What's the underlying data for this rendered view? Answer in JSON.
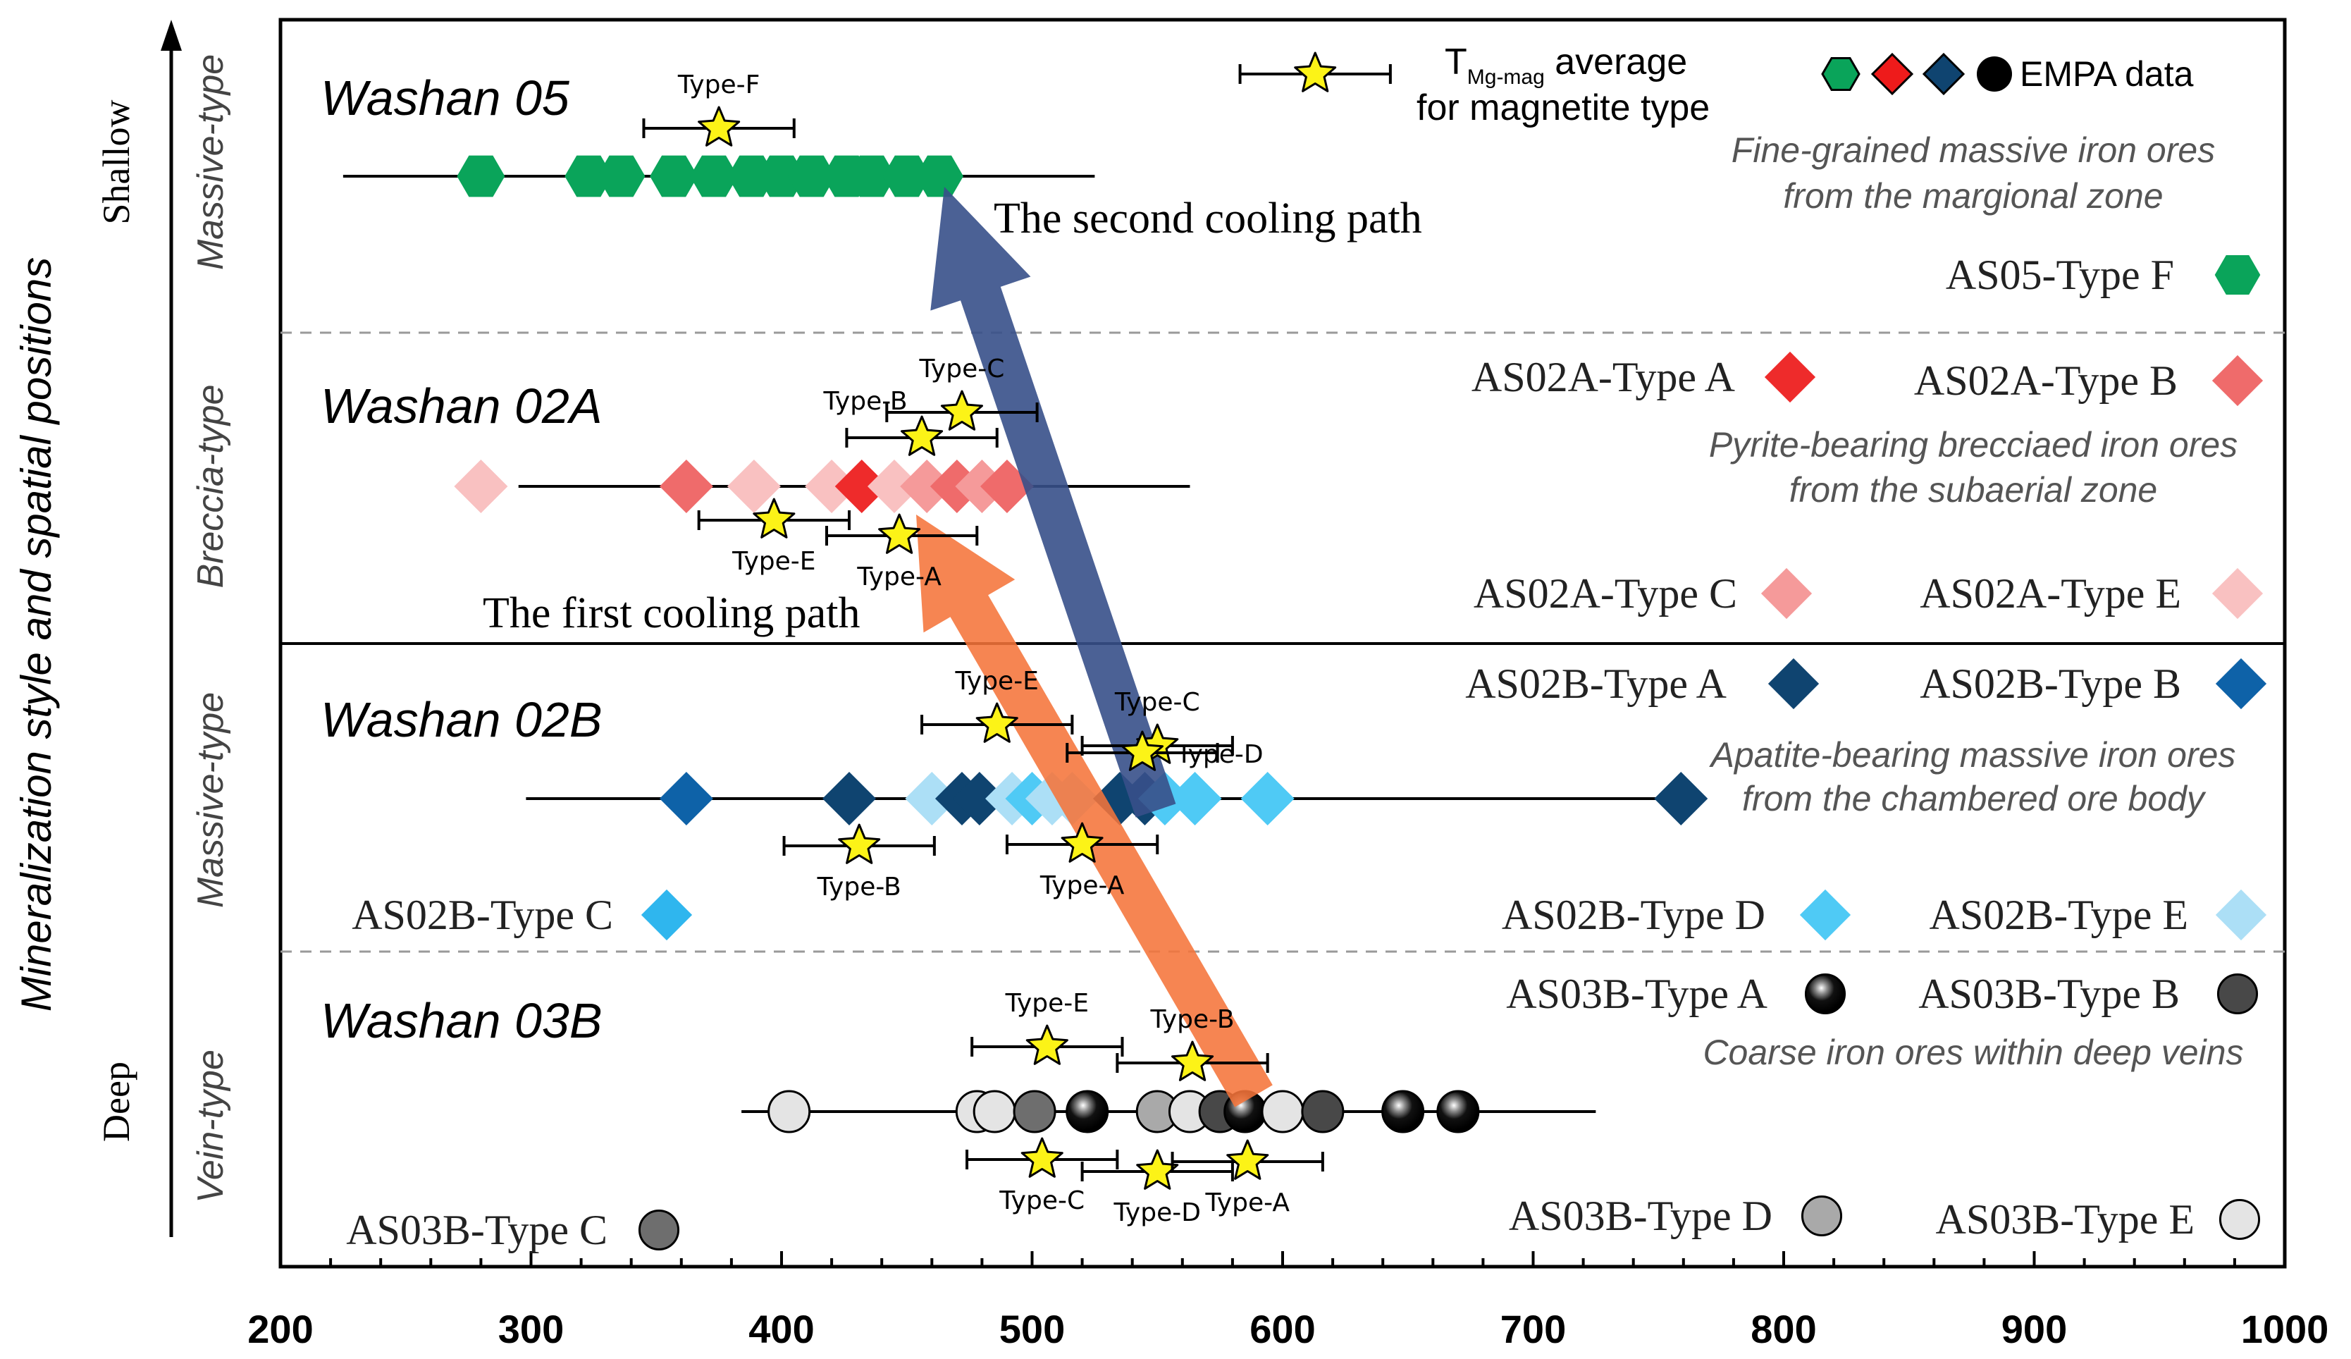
{
  "chart_data": {
    "type": "scatter",
    "title": "",
    "xlabel": "",
    "ylabel": "Mineralization style and spatial positions",
    "xlim": [
      200,
      1000
    ],
    "x_ticks": [
      "200",
      "300",
      "400",
      "500",
      "600",
      "700",
      "800",
      "900",
      "1000"
    ],
    "y_axis_top": "Shallow",
    "y_axis_bottom": "Deep",
    "legend": {
      "tmag_label_main": "T",
      "tmag_label_sub": "Mg-mag",
      "tmag_label_rest": " average",
      "tmag_label_line2": "for magnetite type",
      "empa_label": "EMPA data"
    },
    "colors": {
      "AS05-F": "#0aa45a",
      "AS02A-A": "#ee2b2b",
      "AS02A-B": "#ef6b6b",
      "AS02A-C": "#f59a9a",
      "AS02A-E": "#f9c1c1",
      "AS02B-A": "#0f4470",
      "AS02B-B": "#0e62a8",
      "AS02B-C": "#2fb6ee",
      "AS02B-D": "#4fcaf5",
      "AS02B-E": "#acdff6",
      "AS03B-A": "#000000",
      "AS03B-B": "#484848",
      "AS03B-C": "#6e6e6e",
      "AS03B-D": "#a9a9a9",
      "AS03B-E": "#e4e4e4",
      "star": "#fcf317",
      "path1": "#f5743a",
      "path2": "#37508a"
    },
    "paths": [
      {
        "name": "The first cooling path",
        "from": [
          580,
          "03B"
        ],
        "to": [
          445,
          "02A"
        ]
      },
      {
        "name": "The second cooling path",
        "from": [
          545,
          "02B"
        ],
        "to": [
          460,
          "05"
        ]
      }
    ],
    "groups": [
      {
        "id": "05",
        "name": "Washan 05",
        "style": "Massive-type",
        "description": [
          "Fine-grained massive iron ores",
          "from the margional zone"
        ],
        "range": [
          225,
          525
        ],
        "legend_items": [
          {
            "label": "AS05-Type F",
            "color_key": "AS05-F",
            "marker": "hexagon"
          }
        ],
        "points": [
          {
            "x": 280,
            "type": "AS05-F"
          },
          {
            "x": 323,
            "type": "AS05-F"
          },
          {
            "x": 336,
            "type": "AS05-F"
          },
          {
            "x": 357,
            "type": "AS05-F"
          },
          {
            "x": 373,
            "type": "AS05-F"
          },
          {
            "x": 388,
            "type": "AS05-F"
          },
          {
            "x": 400,
            "type": "AS05-F"
          },
          {
            "x": 412,
            "type": "AS05-F"
          },
          {
            "x": 426,
            "type": "AS05-F"
          },
          {
            "x": 436,
            "type": "AS05-F"
          },
          {
            "x": 450,
            "type": "AS05-F"
          },
          {
            "x": 463,
            "type": "AS05-F"
          }
        ],
        "averages": [
          {
            "label": "Type-F",
            "x": 375,
            "err": [
              345,
              405
            ],
            "pos": "above",
            "row": 0
          }
        ]
      },
      {
        "id": "02A",
        "name": "Washan 02A",
        "style": "Breccia-type",
        "description": [
          "Pyrite-bearing brecciaed iron ores",
          "from the subaerial zone"
        ],
        "range": [
          295,
          563
        ],
        "legend_items": [
          {
            "label": "AS02A-Type A",
            "color_key": "AS02A-A",
            "marker": "diamond"
          },
          {
            "label": "AS02A-Type B",
            "color_key": "AS02A-B",
            "marker": "diamond"
          },
          {
            "label": "AS02A-Type C",
            "color_key": "AS02A-C",
            "marker": "diamond"
          },
          {
            "label": "AS02A-Type E",
            "color_key": "AS02A-E",
            "marker": "diamond"
          }
        ],
        "points": [
          {
            "x": 280,
            "type": "AS02A-E"
          },
          {
            "x": 362,
            "type": "AS02A-B"
          },
          {
            "x": 389,
            "type": "AS02A-E"
          },
          {
            "x": 420,
            "type": "AS02A-E"
          },
          {
            "x": 432,
            "type": "AS02A-A"
          },
          {
            "x": 445,
            "type": "AS02A-E"
          },
          {
            "x": 458,
            "type": "AS02A-C"
          },
          {
            "x": 470,
            "type": "AS02A-B"
          },
          {
            "x": 480,
            "type": "AS02A-C"
          },
          {
            "x": 490,
            "type": "AS02A-B"
          }
        ],
        "averages": [
          {
            "label": "Type-C",
            "x": 472,
            "err": [
              442,
              502
            ],
            "pos": "above",
            "row": 0
          },
          {
            "label": "Type-B",
            "x": 456,
            "err": [
              426,
              486
            ],
            "pos": "left",
            "row": 1
          },
          {
            "label": "Type-E",
            "x": 397,
            "err": [
              367,
              427
            ],
            "pos": "below",
            "row": 2
          },
          {
            "label": "Type-A",
            "x": 447,
            "err": [
              418,
              478
            ],
            "pos": "below",
            "row": 3
          }
        ]
      },
      {
        "id": "02B",
        "name": "Washan 02B",
        "style": "Massive-type",
        "description": [
          "Apatite-bearing massive iron ores",
          "from the chambered ore body"
        ],
        "range": [
          298,
          760
        ],
        "legend_items": [
          {
            "label": "AS02B-Type A",
            "color_key": "AS02B-A",
            "marker": "diamond"
          },
          {
            "label": "AS02B-Type B",
            "color_key": "AS02B-B",
            "marker": "diamond"
          },
          {
            "label": "AS02B-Type C",
            "color_key": "AS02B-C",
            "marker": "diamond"
          },
          {
            "label": "AS02B-Type D",
            "color_key": "AS02B-D",
            "marker": "diamond"
          },
          {
            "label": "AS02B-Type E",
            "color_key": "AS02B-E",
            "marker": "diamond"
          }
        ],
        "points": [
          {
            "x": 362,
            "type": "AS02B-B"
          },
          {
            "x": 427,
            "type": "AS02B-A"
          },
          {
            "x": 460,
            "type": "AS02B-E"
          },
          {
            "x": 472,
            "type": "AS02B-A"
          },
          {
            "x": 479,
            "type": "AS02B-A"
          },
          {
            "x": 492,
            "type": "AS02B-E"
          },
          {
            "x": 500,
            "type": "AS02B-D"
          },
          {
            "x": 508,
            "type": "AS02B-E"
          },
          {
            "x": 516,
            "type": "AS02B-E"
          },
          {
            "x": 535,
            "type": "AS02B-A"
          },
          {
            "x": 545,
            "type": "AS02B-A"
          },
          {
            "x": 553,
            "type": "AS02B-D"
          },
          {
            "x": 565,
            "type": "AS02B-D"
          },
          {
            "x": 594,
            "type": "AS02B-D"
          },
          {
            "x": 759,
            "type": "AS02B-A"
          }
        ],
        "averages": [
          {
            "label": "Type-E",
            "x": 486,
            "err": [
              456,
              516
            ],
            "pos": "above",
            "row": 0
          },
          {
            "label": "Type-C",
            "x": 550,
            "err": [
              520,
              580
            ],
            "pos": "above",
            "row": 1
          },
          {
            "label": "Type-D",
            "x": 544,
            "err": [
              514,
              574
            ],
            "pos": "right",
            "row": 2
          },
          {
            "label": "Type-B",
            "x": 431,
            "err": [
              401,
              461
            ],
            "pos": "below",
            "row": 3
          },
          {
            "label": "Type-A",
            "x": 520,
            "err": [
              490,
              550
            ],
            "pos": "below",
            "row": 4
          }
        ]
      },
      {
        "id": "03B",
        "name": "Washan 03B",
        "style": "Vein-type",
        "description": [
          "Coarse iron ores within deep veins"
        ],
        "range": [
          384,
          725
        ],
        "legend_items": [
          {
            "label": "AS03B-Type A",
            "color_key": "AS03B-A",
            "marker": "sphere"
          },
          {
            "label": "AS03B-Type B",
            "color_key": "AS03B-B",
            "marker": "circle"
          },
          {
            "label": "AS03B-Type C",
            "color_key": "AS03B-C",
            "marker": "circle"
          },
          {
            "label": "AS03B-Type D",
            "color_key": "AS03B-D",
            "marker": "circle"
          },
          {
            "label": "AS03B-Type E",
            "color_key": "AS03B-E",
            "marker": "circle"
          }
        ],
        "points": [
          {
            "x": 403,
            "type": "AS03B-E"
          },
          {
            "x": 478,
            "type": "AS03B-E"
          },
          {
            "x": 485,
            "type": "AS03B-E"
          },
          {
            "x": 501,
            "type": "AS03B-C"
          },
          {
            "x": 522,
            "type": "AS03B-A"
          },
          {
            "x": 550,
            "type": "AS03B-D"
          },
          {
            "x": 563,
            "type": "AS03B-E"
          },
          {
            "x": 575,
            "type": "AS03B-B"
          },
          {
            "x": 585,
            "type": "AS03B-A"
          },
          {
            "x": 600,
            "type": "AS03B-E"
          },
          {
            "x": 616,
            "type": "AS03B-B"
          },
          {
            "x": 648,
            "type": "AS03B-A"
          },
          {
            "x": 670,
            "type": "AS03B-A"
          }
        ],
        "averages": [
          {
            "label": "Type-E",
            "x": 506,
            "err": [
              476,
              536
            ],
            "pos": "above",
            "row": 0
          },
          {
            "label": "Type-B",
            "x": 564,
            "err": [
              534,
              594
            ],
            "pos": "above",
            "row": 1
          },
          {
            "label": "Type-C",
            "x": 504,
            "err": [
              474,
              534
            ],
            "pos": "below",
            "row": 2
          },
          {
            "label": "Type-D",
            "x": 550,
            "err": [
              520,
              580
            ],
            "pos": "below",
            "row": 3
          },
          {
            "label": "Type-A",
            "x": 586,
            "err": [
              556,
              616
            ],
            "pos": "below",
            "row": 4
          }
        ]
      }
    ],
    "legend_avg": {
      "x": 613,
      "err": [
        583,
        643
      ]
    }
  }
}
